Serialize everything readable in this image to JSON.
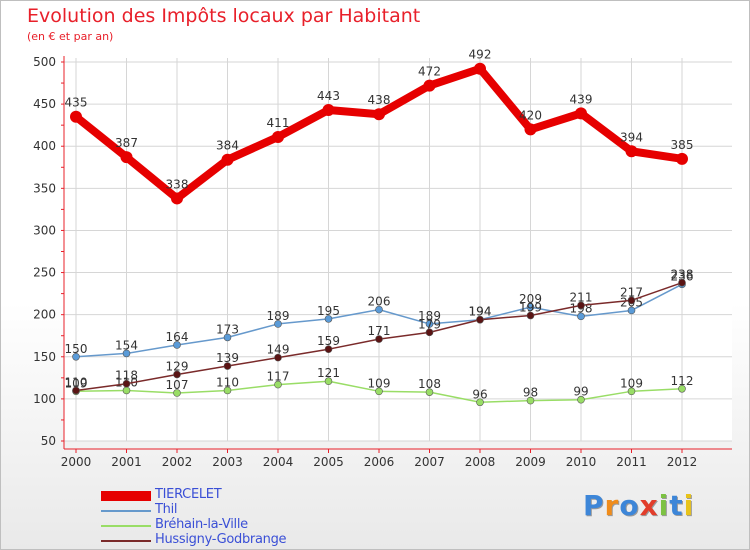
{
  "title": "Evolution des Impôts locaux par Habitant",
  "subtitle": "(en € et par an)",
  "logo_text": "Proxiti",
  "chart_data": {
    "type": "line",
    "title": "Evolution des Impôts locaux par Habitant",
    "subtitle": "(en € et par an)",
    "xlabel": "",
    "ylabel": "",
    "ylim": [
      50,
      500
    ],
    "yticks": [
      50,
      100,
      150,
      200,
      250,
      300,
      350,
      400,
      450,
      500
    ],
    "x": [
      "2000",
      "2001",
      "2002",
      "2003",
      "2004",
      "2005",
      "2006",
      "2007",
      "2008",
      "2009",
      "2010",
      "2011",
      "2012"
    ],
    "grid": true,
    "legend_position": "bottom-left",
    "series": [
      {
        "name": "TIERCELET",
        "color": "#e60000",
        "point_color": "#e60000",
        "values": [
          435,
          387,
          338,
          384,
          411,
          443,
          438,
          472,
          492,
          420,
          439,
          394,
          385
        ]
      },
      {
        "name": "Thil",
        "color": "#6699cc",
        "point_color": "#5a9bd8",
        "values": [
          150,
          154,
          164,
          173,
          189,
          195,
          206,
          189,
          194,
          209,
          198,
          205,
          236
        ]
      },
      {
        "name": "Bréhain-la-Ville",
        "color": "#99dd66",
        "point_color": "#99dd66",
        "values": [
          109,
          110,
          107,
          110,
          117,
          121,
          109,
          108,
          96,
          98,
          99,
          109,
          112
        ]
      },
      {
        "name": "Hussigny-Godbrange",
        "color": "#7a2a2a",
        "point_color": "#5a1414",
        "values": [
          110,
          118,
          129,
          139,
          149,
          159,
          171,
          179,
          194,
          199,
          211,
          217,
          238
        ]
      }
    ]
  }
}
